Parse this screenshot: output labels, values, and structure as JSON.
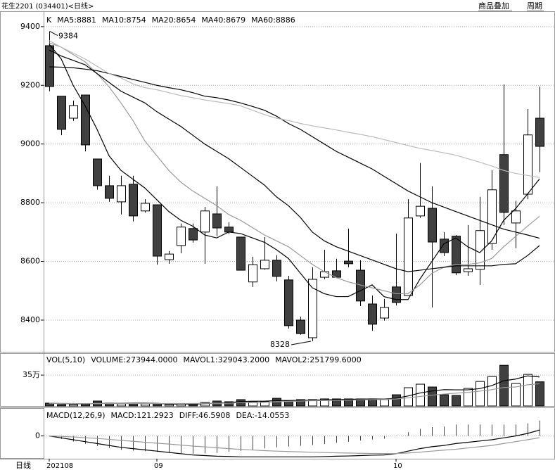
{
  "header": {
    "title": "花生2201 (034401)<日线>",
    "buttons": [
      "商品叠加",
      "周期"
    ]
  },
  "footer": {
    "label": "日线"
  },
  "chart_data": [
    {
      "type": "candlestick",
      "legend_label": "K",
      "categories": [
        "202108",
        null,
        null,
        null,
        null,
        null,
        null,
        null,
        null,
        "09",
        null,
        null,
        null,
        null,
        null,
        null,
        null,
        null,
        null,
        null,
        null,
        null,
        null,
        null,
        null,
        null,
        null,
        null,
        null,
        "10",
        null,
        null,
        null,
        null,
        null,
        null,
        null,
        null,
        null,
        null,
        null,
        null
      ],
      "open": [
        9335,
        9163,
        9088,
        9167,
        8949,
        8858,
        8803,
        8863,
        8772,
        8793,
        8606,
        8654,
        8712,
        8700,
        8762,
        8717,
        8683,
        8530,
        8575,
        8604,
        8537,
        8400,
        8340,
        8546,
        8568,
        8601,
        8570,
        8455,
        8407,
        8513,
        8484,
        8755,
        8781,
        8676,
        8686,
        8565,
        8573,
        8661,
        8964,
        8731,
        8829,
        9088
      ],
      "high": [
        9384,
        9163,
        9148,
        9167,
        8949,
        8892,
        8892,
        8892,
        8812,
        8793,
        8635,
        8729,
        8729,
        8786,
        8856,
        8733,
        8683,
        8616,
        8683,
        8621,
        8551,
        8412,
        8580,
        8640,
        8609,
        8712,
        8604,
        8484,
        8472,
        8695,
        8812,
        8935,
        8856,
        8700,
        8690,
        8724,
        8820,
        8911,
        9203,
        8806,
        9119,
        9196
      ],
      "low": [
        9180,
        9030,
        9079,
        8975,
        8844,
        8803,
        8760,
        8736,
        8766,
        8589,
        8592,
        8628,
        8664,
        8592,
        8686,
        8693,
        8570,
        8513,
        8572,
        8532,
        8371,
        8350,
        8328,
        8539,
        8543,
        8580,
        8448,
        8364,
        8398,
        8450,
        8484,
        8748,
        8443,
        8618,
        8553,
        8551,
        8520,
        8640,
        8724,
        8645,
        8812,
        8904
      ],
      "close": [
        9196,
        9050,
        9131,
        8997,
        8858,
        8815,
        8858,
        8755,
        8798,
        8618,
        8625,
        8717,
        8673,
        8772,
        8714,
        8700,
        8570,
        8589,
        8604,
        8549,
        8381,
        8354,
        8539,
        8565,
        8546,
        8592,
        8465,
        8386,
        8443,
        8460,
        8748,
        8788,
        8666,
        8630,
        8561,
        8575,
        8705,
        8844,
        8767,
        8772,
        9031,
        8992
      ],
      "up_color": "#ffffff",
      "down_color": "#404040",
      "edge_color": "#000000",
      "max_label": 9384,
      "min_label": 8328,
      "series": [
        {
          "name": "MA5:8881",
          "color": "#000000",
          "values": [
            9340,
            9290,
            9200,
            9130,
            9050,
            8960,
            8910,
            8880,
            8850,
            8810,
            8770,
            8740,
            8720,
            8690,
            8680,
            8700,
            8695,
            8680,
            8665,
            8640,
            8610,
            8560,
            8510,
            8490,
            8480,
            8480,
            8500,
            8520,
            8480,
            8470,
            8470,
            8540,
            8600,
            8660,
            8680,
            8650,
            8630,
            8670,
            8740,
            8780,
            8830,
            8881
          ]
        },
        {
          "name": "MA10:8754",
          "color": "#999999",
          "values": [
            9345,
            9330,
            9305,
            9280,
            9240,
            9195,
            9140,
            9080,
            9010,
            8960,
            8910,
            8870,
            8840,
            8815,
            8790,
            8760,
            8740,
            8715,
            8690,
            8670,
            8650,
            8620,
            8590,
            8565,
            8545,
            8530,
            8520,
            8510,
            8500,
            8490,
            8490,
            8520,
            8560,
            8580,
            8590,
            8590,
            8595,
            8610,
            8650,
            8685,
            8720,
            8754
          ]
        },
        {
          "name": "MA20:8654",
          "color": "#000000",
          "values": [
            9320,
            9300,
            9285,
            9270,
            9240,
            9210,
            9180,
            9160,
            9140,
            9110,
            9085,
            9060,
            9030,
            9000,
            8975,
            8950,
            8920,
            8890,
            8860,
            8820,
            8790,
            8750,
            8700,
            8670,
            8650,
            8635,
            8620,
            8605,
            8590,
            8575,
            8565,
            8570,
            8575,
            8580,
            8585,
            8585,
            8585,
            8585,
            8590,
            8592,
            8620,
            8654
          ]
        },
        {
          "name": "MA40:8679",
          "color": "#000000",
          "values": [
            9263,
            9262,
            9260,
            9255,
            9250,
            9240,
            9230,
            9220,
            9210,
            9200,
            9192,
            9185,
            9175,
            9163,
            9158,
            9150,
            9140,
            9128,
            9115,
            9095,
            9070,
            9050,
            9025,
            9000,
            8975,
            8955,
            8935,
            8915,
            8890,
            8865,
            8840,
            8820,
            8800,
            8785,
            8770,
            8755,
            8740,
            8725,
            8710,
            8700,
            8690,
            8679
          ]
        },
        {
          "name": "MA60:8886",
          "color": "#bbbbbb",
          "values": [
            9352,
            9330,
            9310,
            9290,
            9265,
            9240,
            9225,
            9205,
            9192,
            9185,
            9175,
            9165,
            9158,
            9150,
            9144,
            9138,
            9130,
            9115,
            9100,
            9088,
            9080,
            9070,
            9062,
            9055,
            9048,
            9040,
            9033,
            9025,
            9015,
            9005,
            8995,
            8985,
            8978,
            8970,
            8962,
            8950,
            8938,
            8925,
            8910,
            8900,
            8893,
            8886
          ]
        }
      ],
      "ylim": [
        8292,
        9450
      ],
      "yticks": [
        8400,
        8600,
        8800,
        9000,
        9200,
        9400
      ],
      "grid": true
    },
    {
      "type": "bar",
      "legend_label": "VOL(5,10)",
      "values": [
        32000,
        16000,
        16000,
        24000,
        56000,
        32000,
        24000,
        24000,
        24000,
        24000,
        16000,
        24000,
        24000,
        40000,
        56000,
        48000,
        72000,
        48000,
        48000,
        87000,
        56000,
        72000,
        72000,
        80000,
        80000,
        80000,
        80000,
        80000,
        72000,
        127000,
        207000,
        247000,
        215000,
        127000,
        119000,
        199000,
        278000,
        334000,
        461000,
        255000,
        358000,
        273944
      ],
      "name": "VOLUME:273944.0000",
      "color": "#000000",
      "series": [
        {
          "name": "MAVOL1:329043.2000",
          "color": "#000000",
          "values": [
            30000,
            28000,
            26000,
            25000,
            29000,
            29000,
            30000,
            32000,
            32000,
            30000,
            22000,
            22000,
            22000,
            26000,
            32000,
            38000,
            50000,
            54000,
            54000,
            62000,
            62000,
            64000,
            66000,
            70000,
            72000,
            75000,
            78000,
            80000,
            78000,
            88000,
            113000,
            147000,
            170000,
            185000,
            183000,
            183000,
            197000,
            231000,
            285000,
            305000,
            341000,
            329043.2
          ]
        },
        {
          "name": "MAVOL2:251799.6000",
          "color": "#999999",
          "values": [
            30000,
            29000,
            28000,
            27000,
            28000,
            28000,
            28000,
            28000,
            28000,
            28000,
            28000,
            28000,
            28000,
            30000,
            30000,
            32000,
            38000,
            40000,
            42000,
            48000,
            52000,
            56000,
            60000,
            62000,
            64000,
            66000,
            70000,
            72000,
            74000,
            80000,
            92000,
            108000,
            122000,
            135000,
            145000,
            155000,
            168000,
            185000,
            210000,
            215000,
            240000,
            251799.6
          ]
        }
      ],
      "ylim": [
        0,
        590000
      ],
      "yticks": [
        {
          "value": 350000,
          "label": "35万"
        }
      ],
      "grid": true
    },
    {
      "type": "macd",
      "legend_label": "MACD(12,26,9)",
      "values": [
        0,
        -24,
        -44,
        -62,
        -80,
        -96,
        -110,
        -116,
        -120,
        -126,
        -132,
        -136,
        -140,
        -138,
        -134,
        -124,
        -118,
        -108,
        -98,
        -90,
        -84,
        -78,
        -72,
        -64,
        -54,
        -46,
        -36,
        -28,
        -22,
        -2,
        30,
        56,
        70,
        74,
        90,
        90,
        90,
        90,
        90,
        90,
        100,
        121.2923
      ],
      "name": "MACD:121.2923",
      "color": "#444444",
      "series": [
        {
          "name": "DIFF:46.5908",
          "color": "#000000",
          "values": [
            0,
            -15,
            -30,
            -45,
            -60,
            -75,
            -90,
            -100,
            -110,
            -120,
            -130,
            -140,
            -150,
            -155,
            -160,
            -162,
            -165,
            -165,
            -165,
            -165,
            -165,
            -165,
            -165,
            -163,
            -160,
            -158,
            -155,
            -152,
            -150,
            -140,
            -120,
            -100,
            -85,
            -75,
            -60,
            -50,
            -40,
            -30,
            -15,
            0,
            20,
            46.5908
          ]
        },
        {
          "name": "DEA:-14.0553",
          "color": "#999999",
          "values": [
            0,
            -3,
            -8,
            -14,
            -20,
            -27,
            -35,
            -42,
            -50,
            -57,
            -64,
            -72,
            -80,
            -86,
            -93,
            -100,
            -106,
            -111,
            -116,
            -120,
            -123,
            -126,
            -129,
            -131,
            -133,
            -135,
            -137,
            -138,
            -139,
            -139,
            -135,
            -128,
            -120,
            -112,
            -105,
            -95,
            -85,
            -75,
            -60,
            -45,
            -30,
            -14.0553
          ]
        }
      ],
      "ylim": [
        -180,
        220
      ],
      "yticks": [
        0
      ],
      "grid": true
    }
  ]
}
